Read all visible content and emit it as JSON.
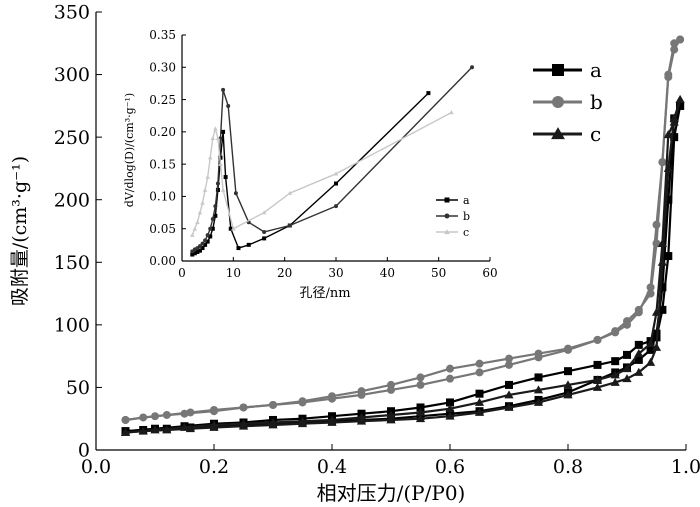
{
  "chart_data": [
    {
      "type": "line",
      "xlabel": "相对压力/(P/P0)",
      "ylabel": "吸附量/(cm³·g⁻¹)",
      "xlim": [
        0.0,
        1.0
      ],
      "ylim": [
        0,
        350
      ],
      "xticks": [
        "0.0",
        "0.2",
        "0.4",
        "0.6",
        "0.8",
        "1.0"
      ],
      "yticks": [
        "0",
        "50",
        "100",
        "150",
        "200",
        "250",
        "300",
        "350"
      ],
      "legend_position": "top-right",
      "series": [
        {
          "name": "a",
          "color": "#000000",
          "marker": "square",
          "adsorption": {
            "x": [
              0.05,
              0.08,
              0.12,
              0.16,
              0.2,
              0.25,
              0.3,
              0.35,
              0.4,
              0.45,
              0.5,
              0.55,
              0.6,
              0.65,
              0.7,
              0.75,
              0.8,
              0.85,
              0.88,
              0.9,
              0.92,
              0.94,
              0.95,
              0.96,
              0.97,
              0.98,
              0.99
            ],
            "y": [
              15,
              16,
              17,
              18,
              19,
              20,
              21,
              22,
              23,
              24,
              25,
              27,
              29,
              31,
              35,
              40,
              46,
              56,
              62,
              66,
              72,
              80,
              93,
              130,
              200,
              265,
              275
            ]
          },
          "desorption": {
            "x": [
              0.99,
              0.98,
              0.97,
              0.96,
              0.95,
              0.94,
              0.92,
              0.9,
              0.88,
              0.85,
              0.8,
              0.75,
              0.7,
              0.65,
              0.6,
              0.55,
              0.5,
              0.45,
              0.4,
              0.35,
              0.3,
              0.25,
              0.2,
              0.15,
              0.1,
              0.05
            ],
            "y": [
              275,
              250,
              155,
              112,
              90,
              87,
              84,
              76,
              71,
              68,
              63,
              58,
              52,
              45,
              38,
              34,
              31,
              29,
              27,
              25,
              24,
              22,
              21,
              19,
              17,
              15
            ]
          }
        },
        {
          "name": "b",
          "color": "#777777",
          "marker": "circle",
          "adsorption": {
            "x": [
              0.05,
              0.08,
              0.12,
              0.16,
              0.2,
              0.25,
              0.3,
              0.35,
              0.4,
              0.45,
              0.5,
              0.55,
              0.6,
              0.65,
              0.7,
              0.75,
              0.8,
              0.85,
              0.88,
              0.9,
              0.92,
              0.94,
              0.95,
              0.96,
              0.97,
              0.98,
              0.99
            ],
            "y": [
              24,
              26,
              28,
              30,
              32,
              34,
              36,
              38,
              41,
              44,
              48,
              52,
              57,
              62,
              68,
              74,
              80,
              88,
              95,
              103,
              112,
              125,
              165,
              230,
              300,
              325,
              328
            ]
          },
          "desorption": {
            "x": [
              0.99,
              0.98,
              0.97,
              0.96,
              0.95,
              0.94,
              0.92,
              0.9,
              0.88,
              0.85,
              0.8,
              0.75,
              0.7,
              0.65,
              0.6,
              0.55,
              0.5,
              0.45,
              0.4,
              0.35,
              0.3,
              0.25,
              0.2,
              0.15,
              0.1,
              0.05
            ],
            "y": [
              328,
              320,
              298,
              230,
              180,
              130,
              110,
              100,
              94,
              88,
              81,
              77,
              73,
              69,
              65,
              58,
              52,
              47,
              43,
              39,
              36,
              34,
              31,
              29,
              27,
              24
            ]
          }
        },
        {
          "name": "c",
          "color": "#1a1a1a",
          "marker": "triangle",
          "adsorption": {
            "x": [
              0.05,
              0.08,
              0.12,
              0.16,
              0.2,
              0.25,
              0.3,
              0.35,
              0.4,
              0.45,
              0.5,
              0.55,
              0.6,
              0.65,
              0.7,
              0.75,
              0.8,
              0.85,
              0.88,
              0.9,
              0.92,
              0.94,
              0.95,
              0.96,
              0.97,
              0.98,
              0.99
            ],
            "y": [
              14,
              15,
              16,
              17,
              18,
              19,
              20,
              21,
              22,
              23,
              24,
              25,
              27,
              30,
              34,
              38,
              44,
              50,
              54,
              57,
              62,
              70,
              82,
              150,
              225,
              265,
              280
            ]
          },
          "desorption": {
            "x": [
              0.99,
              0.98,
              0.97,
              0.96,
              0.95,
              0.94,
              0.92,
              0.9,
              0.88,
              0.85,
              0.8,
              0.75,
              0.7,
              0.65,
              0.6,
              0.55,
              0.5,
              0.45,
              0.4,
              0.35,
              0.3,
              0.25,
              0.2,
              0.15,
              0.1,
              0.05
            ],
            "y": [
              280,
              262,
              252,
              165,
              110,
              85,
              77,
              65,
              60,
              56,
              52,
              48,
              44,
              38,
              33,
              30,
              28,
              26,
              24,
              23,
              22,
              21,
              20,
              18,
              16,
              14
            ]
          }
        }
      ]
    },
    {
      "type": "line",
      "xlabel": "孔径/nm",
      "ylabel": "dV/dlog(D)/(cm³·g⁻¹)",
      "xlim": [
        0,
        60
      ],
      "ylim": [
        0.0,
        0.35
      ],
      "xticks": [
        "0",
        "10",
        "20",
        "30",
        "40",
        "50",
        "60"
      ],
      "yticks": [
        "0.00",
        "0.05",
        "0.10",
        "0.15",
        "0.20",
        "0.25",
        "0.30",
        "0.35"
      ],
      "legend_position": "bottom-right",
      "series": [
        {
          "name": "a",
          "color": "#000000",
          "marker": "square",
          "x": [
            2.0,
            2.5,
            3.0,
            3.5,
            4.0,
            4.5,
            5.0,
            5.5,
            6.0,
            6.5,
            7.0,
            7.5,
            8.0,
            8.5,
            9.5,
            11.0,
            13.0,
            16.0,
            21.0,
            30.0,
            48.0
          ],
          "y": [
            0.01,
            0.012,
            0.014,
            0.016,
            0.02,
            0.025,
            0.03,
            0.038,
            0.05,
            0.07,
            0.11,
            0.16,
            0.2,
            0.13,
            0.05,
            0.02,
            0.025,
            0.035,
            0.055,
            0.12,
            0.26
          ]
        },
        {
          "name": "b",
          "color": "#333333",
          "marker": "circle",
          "x": [
            2.0,
            2.5,
            3.0,
            3.5,
            4.0,
            4.5,
            5.0,
            5.5,
            6.0,
            6.5,
            7.0,
            7.5,
            8.0,
            9.0,
            10.5,
            13.0,
            16.0,
            21.0,
            30.0,
            56.5
          ],
          "y": [
            0.015,
            0.018,
            0.02,
            0.023,
            0.027,
            0.032,
            0.04,
            0.05,
            0.065,
            0.085,
            0.12,
            0.19,
            0.265,
            0.24,
            0.105,
            0.06,
            0.045,
            0.055,
            0.085,
            0.3
          ]
        },
        {
          "name": "c",
          "color": "#c8c8c8",
          "marker": "triangle",
          "x": [
            2.0,
            2.5,
            3.0,
            3.5,
            4.0,
            4.5,
            5.0,
            5.5,
            6.0,
            6.5,
            7.0,
            7.5,
            8.0,
            10.0,
            16.0,
            21.0,
            30.0,
            52.5
          ],
          "y": [
            0.04,
            0.05,
            0.06,
            0.075,
            0.09,
            0.11,
            0.13,
            0.16,
            0.19,
            0.205,
            0.19,
            0.15,
            0.11,
            0.05,
            0.075,
            0.105,
            0.135,
            0.23
          ]
        }
      ]
    }
  ]
}
